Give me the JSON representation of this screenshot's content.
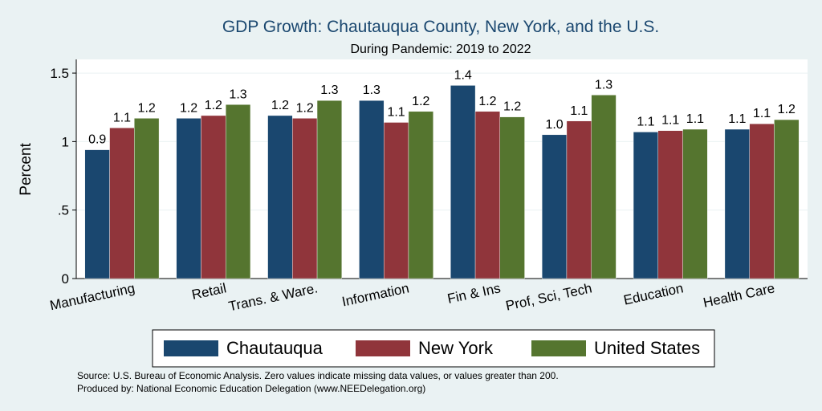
{
  "chart_data": {
    "type": "bar",
    "title": "GDP Growth: Chautauqua County, New York, and the U.S.",
    "subtitle": "During Pandemic: 2019 to 2022",
    "ylabel": "Percent",
    "xlabel": "",
    "ylim": [
      0,
      1.6
    ],
    "yticks": [
      {
        "value": 0,
        "label": "0"
      },
      {
        "value": 0.5,
        "label": ".5"
      },
      {
        "value": 1,
        "label": "1"
      },
      {
        "value": 1.5,
        "label": "1.5"
      }
    ],
    "grid": true,
    "legend_position": "bottom",
    "categories": [
      "Manufacturing",
      "Retail",
      "Trans. & Ware.",
      "Information",
      "Fin & Ins",
      "Prof, Sci, Tech",
      "Education",
      "Health Care"
    ],
    "series": [
      {
        "name": "Chautauqua",
        "color": "#1a476f",
        "values": [
          0.94,
          1.17,
          1.19,
          1.3,
          1.41,
          1.05,
          1.07,
          1.09
        ],
        "labels": [
          "0.9",
          "1.2",
          "1.2",
          "1.3",
          "1.4",
          "1.0",
          "1.1",
          "1.1"
        ]
      },
      {
        "name": "New York",
        "color": "#90353b",
        "values": [
          1.1,
          1.19,
          1.17,
          1.14,
          1.22,
          1.15,
          1.08,
          1.13
        ],
        "labels": [
          "1.1",
          "1.2",
          "1.2",
          "1.1",
          "1.2",
          "1.1",
          "1.1",
          "1.1"
        ]
      },
      {
        "name": "United States",
        "color": "#55752f",
        "values": [
          1.17,
          1.27,
          1.3,
          1.22,
          1.18,
          1.34,
          1.09,
          1.16
        ],
        "labels": [
          "1.2",
          "1.3",
          "1.3",
          "1.2",
          "1.2",
          "1.3",
          "1.1",
          "1.2"
        ]
      }
    ],
    "notes": [
      "Source: U.S. Bureau of Economic Analysis. Zero values indicate missing data values, or values greater than 200.",
      "Produced by: National Economic Education Delegation (www.NEEDelegation.org)"
    ]
  }
}
